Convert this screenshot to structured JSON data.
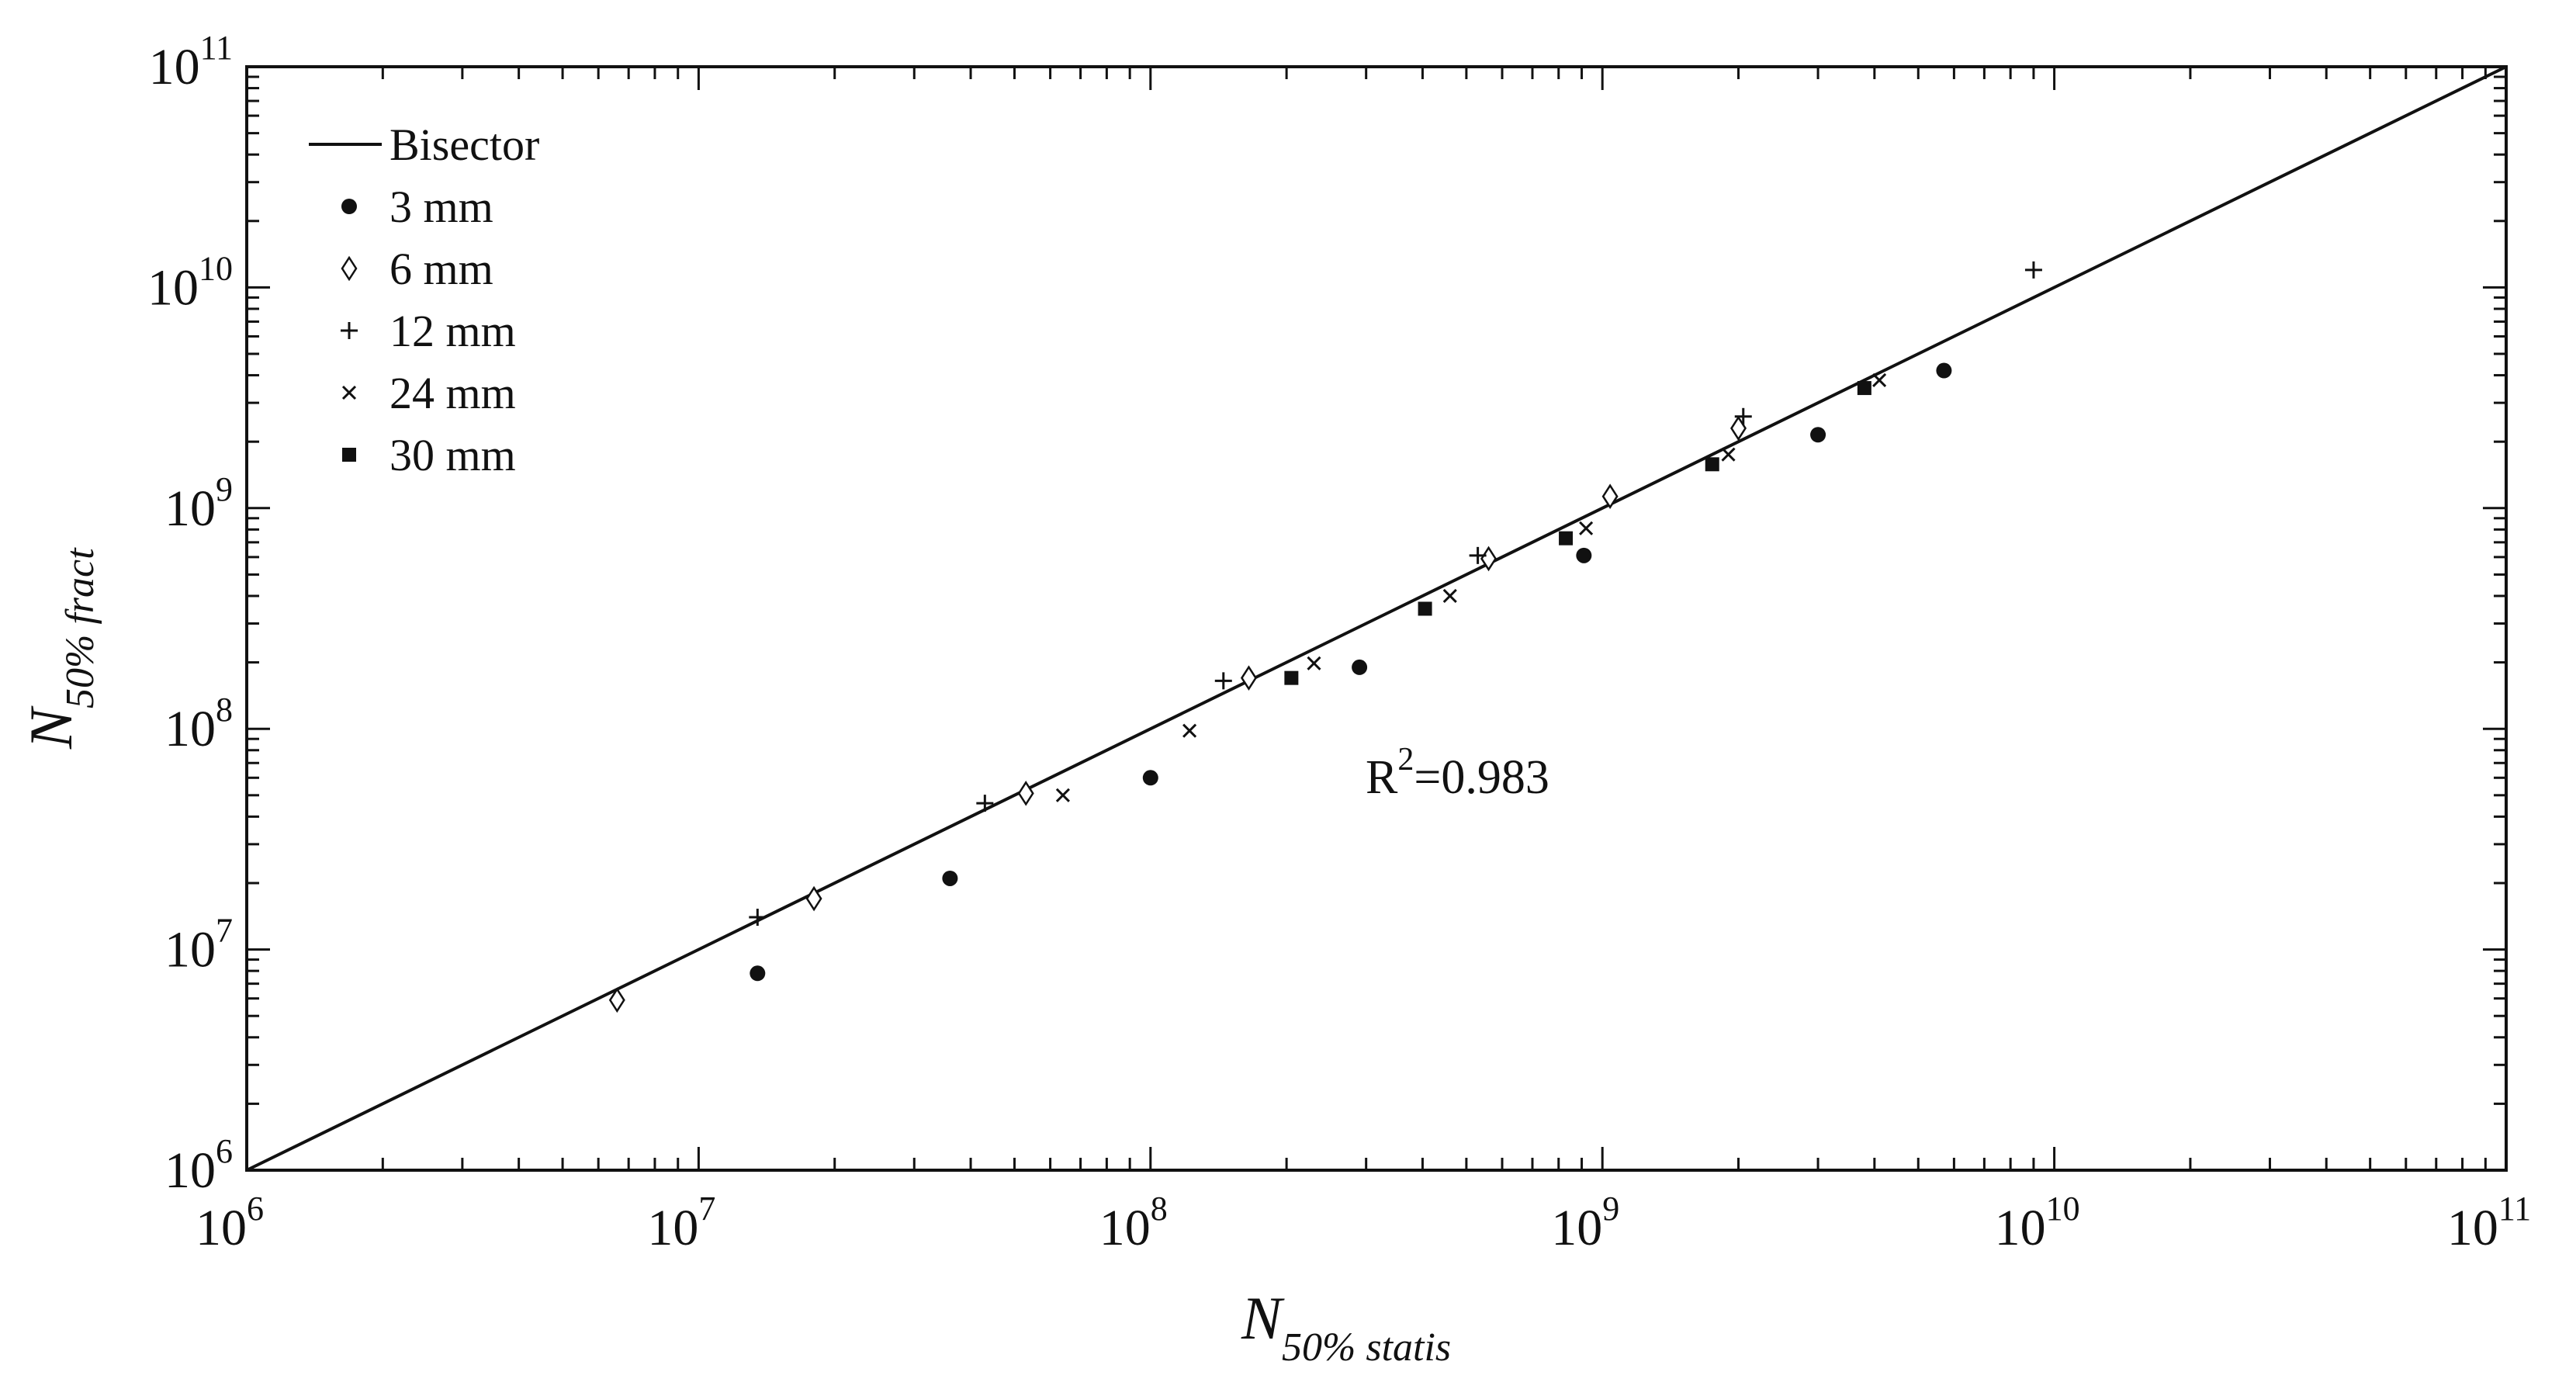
{
  "chart_data": {
    "type": "scatter",
    "xscale": "log",
    "yscale": "log",
    "xlim": [
      1000000,
      100000000000
    ],
    "ylim": [
      1000000,
      100000000000
    ],
    "grid": false,
    "legend_position": "top-left",
    "xlabel": {
      "main": "N",
      "sub": "50% statis"
    },
    "ylabel": {
      "main": "N",
      "sub": "50% fract"
    },
    "xticks": [
      {
        "base": "10",
        "exp": "6"
      },
      {
        "base": "10",
        "exp": "7"
      },
      {
        "base": "10",
        "exp": "8"
      },
      {
        "base": "10",
        "exp": "9"
      },
      {
        "base": "10",
        "exp": "10"
      },
      {
        "base": "10",
        "exp": "11"
      }
    ],
    "yticks": [
      {
        "base": "10",
        "exp": "6"
      },
      {
        "base": "10",
        "exp": "7"
      },
      {
        "base": "10",
        "exp": "8"
      },
      {
        "base": "10",
        "exp": "9"
      },
      {
        "base": "10",
        "exp": "10"
      },
      {
        "base": "10",
        "exp": "11"
      }
    ],
    "annotation": {
      "base": "R",
      "exp": "2",
      "rest": "=0.983",
      "x": 290000000,
      "y": 60000000
    },
    "reference_line": {
      "name": "Bisector",
      "x": [
        1000000,
        100000000000
      ],
      "y": [
        1000000,
        100000000000
      ]
    },
    "series": [
      {
        "name": "3 mm",
        "marker": "filled-circle",
        "x": [
          13500000,
          36000000,
          100000000,
          290000000,
          910000000,
          3000000000,
          5700000000
        ],
        "y": [
          7800000,
          21000000,
          60000000,
          190000000,
          610000000,
          2150000000,
          4200000000
        ]
      },
      {
        "name": "6 mm",
        "marker": "open-diamond",
        "x": [
          6600000,
          18000000,
          53000000,
          165000000,
          560000000,
          1040000000,
          2000000000
        ],
        "y": [
          5900000,
          17000000,
          51000000,
          170000000,
          590000000,
          1130000000,
          2300000000
        ]
      },
      {
        "name": "12 mm",
        "marker": "plus",
        "x": [
          13500000,
          43000000,
          145000000,
          530000000,
          2050000000,
          9000000000
        ],
        "y": [
          14000000,
          46000000,
          165000000,
          610000000,
          2600000000,
          12000000000
        ]
      },
      {
        "name": "24 mm",
        "marker": "cross",
        "x": [
          64000000,
          122000000,
          230000000,
          460000000,
          920000000,
          1900000000,
          4100000000
        ],
        "y": [
          50000000,
          98000000,
          198000000,
          400000000,
          810000000,
          1750000000,
          3800000000
        ]
      },
      {
        "name": "30 mm",
        "marker": "filled-square",
        "x": [
          205000000,
          405000000,
          830000000,
          1750000000,
          3800000000
        ],
        "y": [
          170000000,
          350000000,
          730000000,
          1580000000,
          3500000000
        ]
      }
    ]
  }
}
